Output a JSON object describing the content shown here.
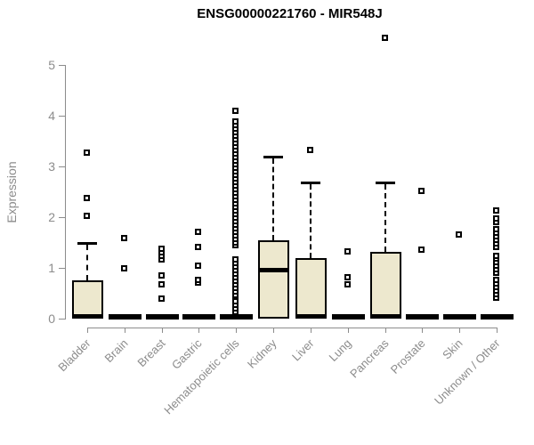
{
  "chart_data": {
    "type": "boxplot",
    "title": "ENSG00000221760 - MIR548J",
    "ylabel": "Expression",
    "xlabel": "",
    "ylim": [
      0,
      5
    ],
    "yticks": [
      0,
      1,
      2,
      3,
      4,
      5
    ],
    "grid": false,
    "legend": false,
    "box_fill": "#EDE8CE",
    "box_border": "#000000",
    "axis_color": "#8C8C8C",
    "categories": [
      "Bladder",
      "Brain",
      "Breast",
      "Gastric",
      "Hematopoietic cells",
      "Kidney",
      "Liver",
      "Lung",
      "Pancreas",
      "Prostate",
      "Skin",
      "Unknown / Other"
    ],
    "boxes": [
      {
        "category": "Bladder",
        "q1": 0,
        "median": 0,
        "q3": 0.75,
        "whisker_low": 0,
        "whisker_high": 1.49,
        "outliers": [
          2.02,
          2.37,
          3.26
        ]
      },
      {
        "category": "Brain",
        "q1": 0,
        "median": 0,
        "q3": 0,
        "whisker_low": 0,
        "whisker_high": 0,
        "outliers": [
          0.98,
          1.58
        ]
      },
      {
        "category": "Breast",
        "q1": 0,
        "median": 0,
        "q3": 0,
        "whisker_low": 0,
        "whisker_high": 0,
        "outliers": [
          0.39,
          0.67,
          0.84,
          1.16,
          1.23,
          1.3,
          1.37
        ]
      },
      {
        "category": "Gastric",
        "q1": 0,
        "median": 0,
        "q3": 0,
        "whisker_low": 0,
        "whisker_high": 0,
        "outliers": [
          0.7,
          0.75,
          1.04,
          1.4,
          1.7
        ]
      },
      {
        "category": "Hematopoietic cells",
        "q1": 0,
        "median": 0,
        "q3": 0,
        "whisker_low": 0,
        "whisker_high": 0,
        "outliers": [
          0.12,
          0.19,
          0.26,
          0.33,
          0.46,
          0.53,
          0.6,
          0.67,
          0.74,
          0.81,
          0.88,
          0.95,
          1.02,
          1.09,
          1.16,
          1.43,
          1.5,
          1.57,
          1.64,
          1.71,
          1.78,
          1.85,
          1.92,
          1.99,
          2.06,
          2.13,
          2.2,
          2.27,
          2.34,
          2.41,
          2.48,
          2.55,
          2.62,
          2.69,
          2.76,
          2.83,
          2.9,
          2.97,
          3.04,
          3.11,
          3.18,
          3.25,
          3.32,
          3.39,
          3.46,
          3.53,
          3.6,
          3.67,
          3.74,
          3.81,
          3.88,
          4.08
        ]
      },
      {
        "category": "Kidney",
        "q1": 0,
        "median": 0.96,
        "q3": 1.54,
        "whisker_low": 0,
        "whisker_high": 3.19,
        "outliers": []
      },
      {
        "category": "Liver",
        "q1": 0,
        "median": 0,
        "q3": 1.19,
        "whisker_low": 0,
        "whisker_high": 2.68,
        "outliers": [
          3.32
        ]
      },
      {
        "category": "Lung",
        "q1": 0,
        "median": 0,
        "q3": 0,
        "whisker_low": 0,
        "whisker_high": 0,
        "outliers": [
          0.67,
          0.81,
          1.32
        ]
      },
      {
        "category": "Pancreas",
        "q1": 0,
        "median": 0,
        "q3": 1.32,
        "whisker_low": 0,
        "whisker_high": 2.68,
        "outliers": [
          5.53
        ]
      },
      {
        "category": "Prostate",
        "q1": 0,
        "median": 0,
        "q3": 0,
        "whisker_low": 0,
        "whisker_high": 0,
        "outliers": [
          1.35,
          2.51
        ]
      },
      {
        "category": "Skin",
        "q1": 0,
        "median": 0,
        "q3": 0,
        "whisker_low": 0,
        "whisker_high": 0,
        "outliers": [
          1.65
        ]
      },
      {
        "category": "Unknown / Other",
        "q1": 0,
        "median": 0,
        "q3": 0,
        "whisker_low": 0,
        "whisker_high": 0,
        "outliers": [
          0.4,
          0.47,
          0.54,
          0.61,
          0.68,
          0.75,
          0.89,
          0.96,
          1.03,
          1.1,
          1.17,
          1.23,
          1.4,
          1.47,
          1.54,
          1.61,
          1.68,
          1.75,
          1.89,
          1.96,
          2.12
        ]
      }
    ]
  }
}
